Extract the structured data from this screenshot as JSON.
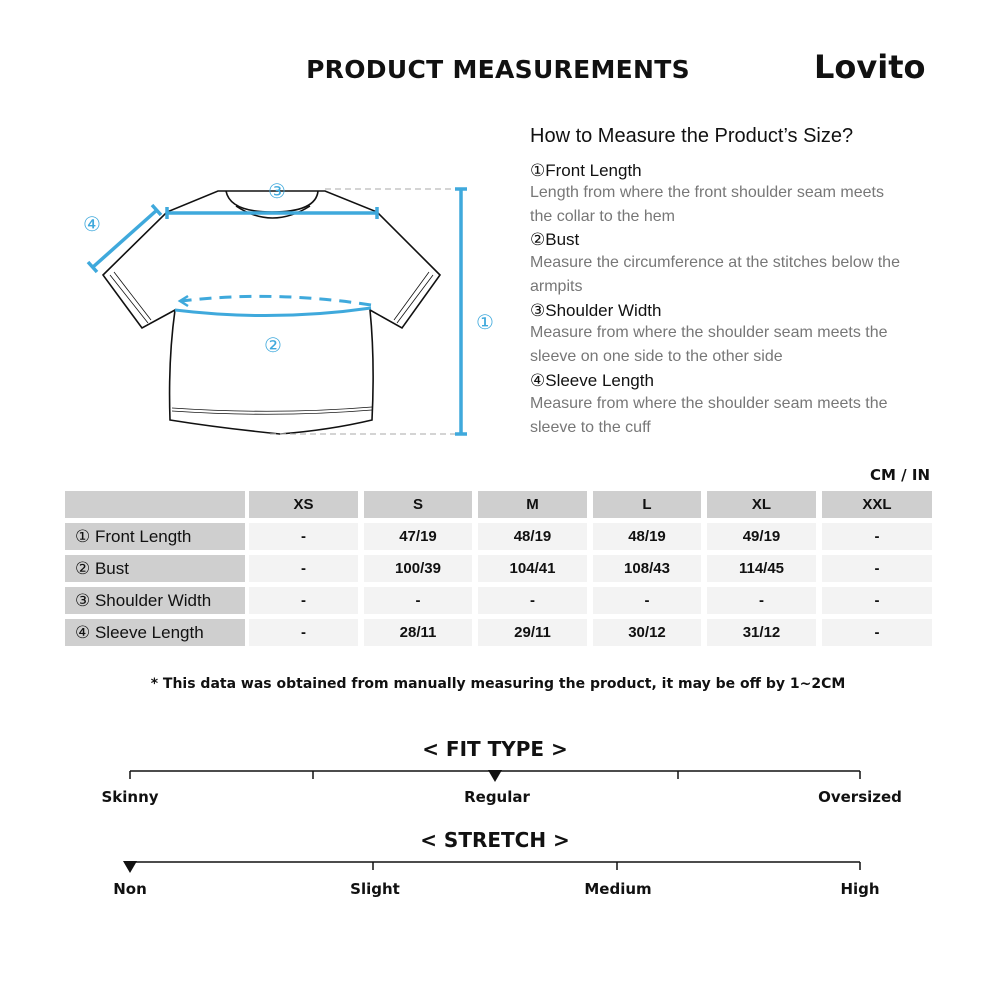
{
  "header": {
    "title": "PRODUCT MEASUREMENTS",
    "brand": "Lovito"
  },
  "guide": {
    "title": "How to Measure the Product’s Size?",
    "items": [
      {
        "label": "①Front Length",
        "desc": "Length from where the front shoulder seam meets the collar to the hem"
      },
      {
        "label": "②Bust",
        "desc": "Measure the circumference at the stitches below the armpits"
      },
      {
        "label": "③Shoulder Width",
        "desc": "Measure from where the shoulder seam meets the sleeve on one side to the other side"
      },
      {
        "label": "④Sleeve Length",
        "desc": "Measure from where the shoulder seam meets the sleeve to the cuff"
      }
    ],
    "diagram_markers": [
      "①",
      "②",
      "③",
      "④"
    ],
    "accent": "#3fa9dc"
  },
  "table": {
    "unit": "CM / IN",
    "sizes": [
      "XS",
      "S",
      "M",
      "L",
      "XL",
      "XXL"
    ],
    "rows": [
      {
        "label": "① Front Length",
        "values": [
          "-",
          "47/19",
          "48/19",
          "48/19",
          "49/19",
          "-"
        ]
      },
      {
        "label": "② Bust",
        "values": [
          "-",
          "100/39",
          "104/41",
          "108/43",
          "114/45",
          "-"
        ]
      },
      {
        "label": "③ Shoulder Width",
        "values": [
          "-",
          "-",
          "-",
          "-",
          "-",
          "-"
        ]
      },
      {
        "label": "④ Sleeve Length",
        "values": [
          "-",
          "28/11",
          "29/11",
          "30/12",
          "31/12",
          "-"
        ]
      }
    ]
  },
  "note": "* This data was obtained from manually measuring the product, it may be off by 1~2CM",
  "fit_type": {
    "title": "< FIT TYPE >",
    "labels": [
      "Skinny",
      "Regular",
      "Oversized"
    ],
    "selected": "Regular",
    "position": 0.5
  },
  "stretch": {
    "title": "< STRETCH >",
    "labels": [
      "Non",
      "Slight",
      "Medium",
      "High"
    ],
    "selected": "Non",
    "position": 0
  }
}
